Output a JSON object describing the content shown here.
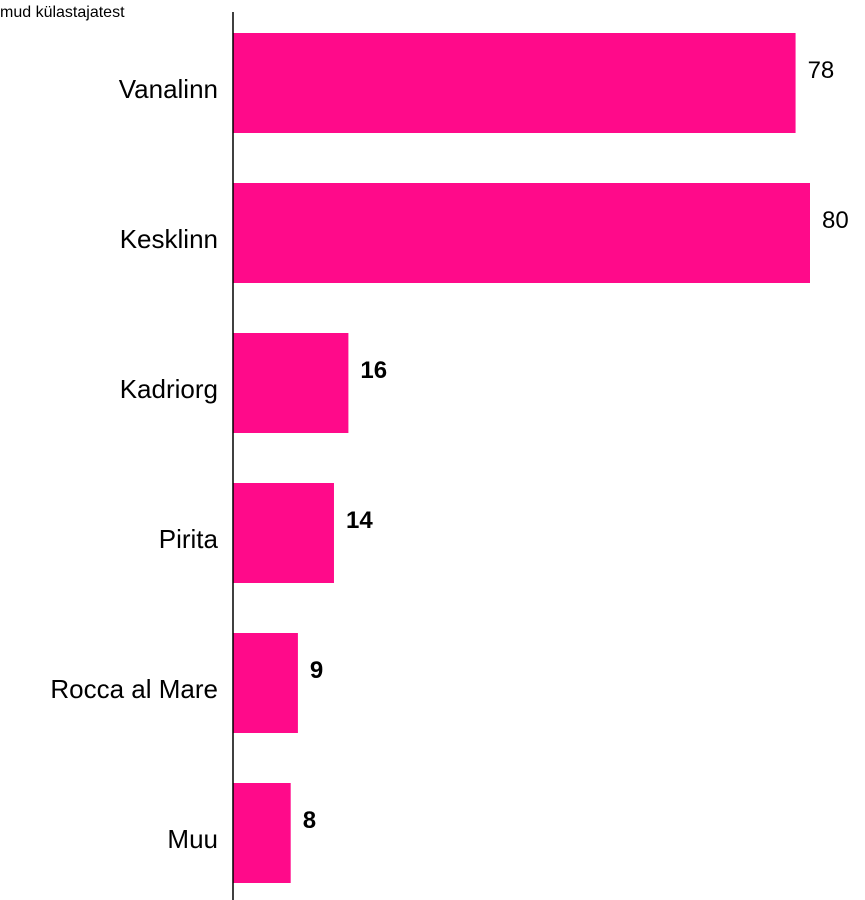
{
  "chart_data": {
    "type": "bar",
    "orientation": "horizontal",
    "title": "mud külastajatest",
    "categories": [
      "Vanalinn",
      "Kesklinn",
      "Kadriorg",
      "Pirita",
      "Rocca al Mare",
      "Muu"
    ],
    "values": [
      78,
      80,
      16,
      14,
      9,
      8
    ],
    "value_labels": [
      "78",
      "80",
      "16",
      "14",
      "9",
      "8"
    ],
    "xlim": [
      0,
      80
    ],
    "grid": false,
    "legend": "none",
    "bar_color": "#ff0a8a"
  }
}
